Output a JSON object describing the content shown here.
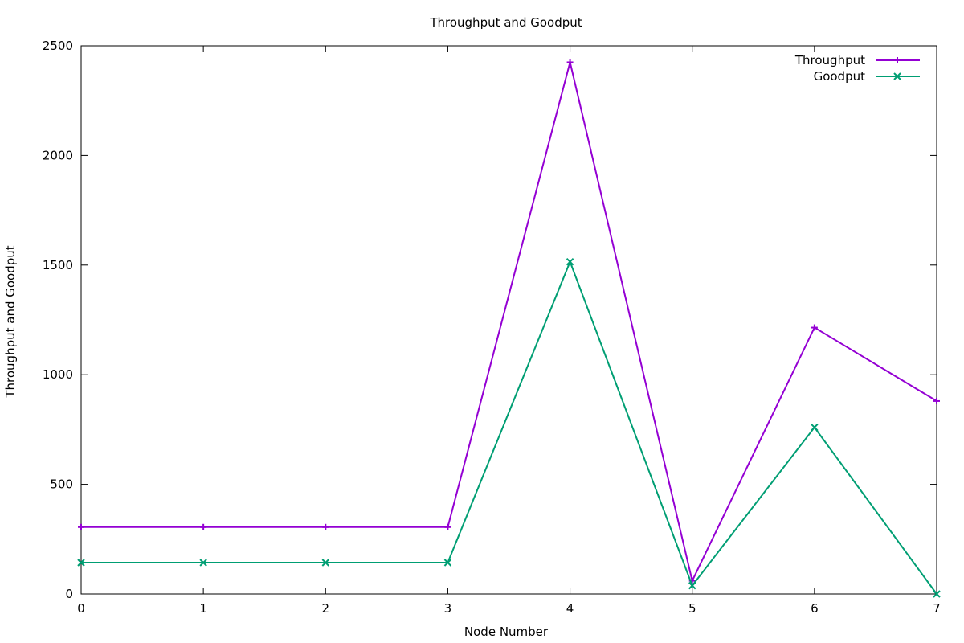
{
  "chart_data": {
    "type": "line",
    "title": "Throughput and Goodput",
    "xlabel": "Node Number",
    "ylabel": "Throughput and Goodput",
    "xlim": [
      0,
      7
    ],
    "ylim": [
      0,
      2500
    ],
    "x_ticks": [
      "0",
      "1",
      "2",
      "3",
      "4",
      "5",
      "6",
      "7"
    ],
    "y_ticks": [
      "0",
      "500",
      "1000",
      "1500",
      "2000",
      "2500"
    ],
    "grid": false,
    "legend_position": "top-right",
    "x": [
      0,
      1,
      2,
      3,
      4,
      5,
      6,
      7
    ],
    "series": [
      {
        "name": "Throughput",
        "color": "#9400d3",
        "marker": "plus",
        "values": [
          305,
          305,
          305,
          305,
          2425,
          60,
          1215,
          880
        ]
      },
      {
        "name": "Goodput",
        "color": "#009e73",
        "marker": "cross",
        "values": [
          143,
          143,
          143,
          143,
          1515,
          38,
          760,
          0
        ]
      }
    ]
  }
}
